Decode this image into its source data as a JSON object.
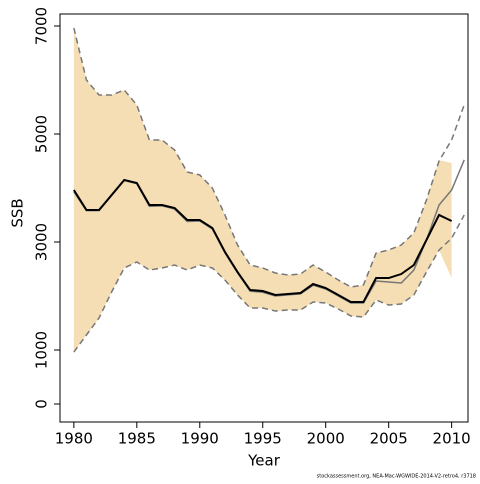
{
  "chart_data": {
    "type": "line",
    "x_label": "Year",
    "y_label": "SSB",
    "footer": "stockassessment.org, NEA-Mac-WGWIDE-2014-V2-retro4, r3718",
    "x": [
      1980,
      1981,
      1982,
      1983,
      1984,
      1985,
      1986,
      1987,
      1988,
      1989,
      1990,
      1991,
      1992,
      1993,
      1994,
      1995,
      1996,
      1997,
      1998,
      1999,
      2000,
      2001,
      2002,
      2003,
      2004,
      2005,
      2006,
      2007,
      2008,
      2009,
      2010,
      2011
    ],
    "xlim": [
      1978.9,
      2011.3
    ],
    "xticks": [
      1980,
      1985,
      1990,
      1995,
      2000,
      2005,
      2010
    ],
    "ylim": [
      -333,
      7222
    ],
    "yticks": [
      0,
      1000,
      3000,
      5000,
      7000
    ],
    "band": {
      "color": "#f5deb3",
      "upper": [
        6963,
        6000,
        5722,
        5722,
        5815,
        5537,
        4889,
        4889,
        4704,
        4296,
        4241,
        4000,
        3500,
        2944,
        2574,
        2519,
        2426,
        2389,
        2407,
        2574,
        2444,
        2296,
        2167,
        2204,
        2796,
        2852,
        2944,
        3167,
        3778,
        4519,
        4463,
        null
      ],
      "lower": [
        963,
        1278,
        1593,
        2074,
        2519,
        2630,
        2481,
        2519,
        2574,
        2481,
        2574,
        2519,
        2296,
        2019,
        1778,
        1778,
        1722,
        1741,
        1741,
        1889,
        1870,
        1759,
        1630,
        1611,
        1926,
        1833,
        1852,
        2019,
        2444,
        2852,
        2333,
        null
      ]
    },
    "series": [
      {
        "color": "#777777",
        "dash": true,
        "values": [
          6963,
          6000,
          5722,
          5722,
          5815,
          5537,
          4889,
          4889,
          4704,
          4296,
          4241,
          4000,
          3500,
          2944,
          2574,
          2519,
          2426,
          2389,
          2407,
          2574,
          2444,
          2296,
          2167,
          2204,
          2796,
          2852,
          2944,
          3167,
          3778,
          4500,
          4890,
          5540
        ]
      },
      {
        "color": "#777777",
        "dash": true,
        "values": [
          963,
          1278,
          1593,
          2074,
          2519,
          2630,
          2481,
          2519,
          2574,
          2481,
          2574,
          2519,
          2296,
          2019,
          1778,
          1778,
          1722,
          1741,
          1741,
          1889,
          1870,
          1759,
          1630,
          1611,
          1926,
          1833,
          1852,
          2019,
          2444,
          2850,
          3070,
          3500
        ]
      },
      {
        "color": "#777777",
        "dash": false,
        "values": [
          3930,
          3580,
          3580,
          3860,
          4140,
          4080,
          3660,
          3670,
          3610,
          3380,
          3390,
          3240,
          2800,
          2430,
          2090,
          2070,
          2000,
          2020,
          2040,
          2200,
          2130,
          2000,
          1870,
          1870,
          2278,
          2259,
          2241,
          2481,
          3037,
          3685,
          3963,
          4519
        ]
      },
      {
        "color": "#000000",
        "dash": false,
        "width": 2,
        "values": [
          3963,
          3593,
          3593,
          3870,
          4148,
          4093,
          3685,
          3685,
          3630,
          3407,
          3407,
          3259,
          2815,
          2444,
          2111,
          2093,
          2019,
          2037,
          2056,
          2222,
          2148,
          2019,
          1889,
          1889,
          2333,
          2333,
          2407,
          2574,
          3037,
          3500,
          3389,
          null
        ]
      }
    ]
  }
}
